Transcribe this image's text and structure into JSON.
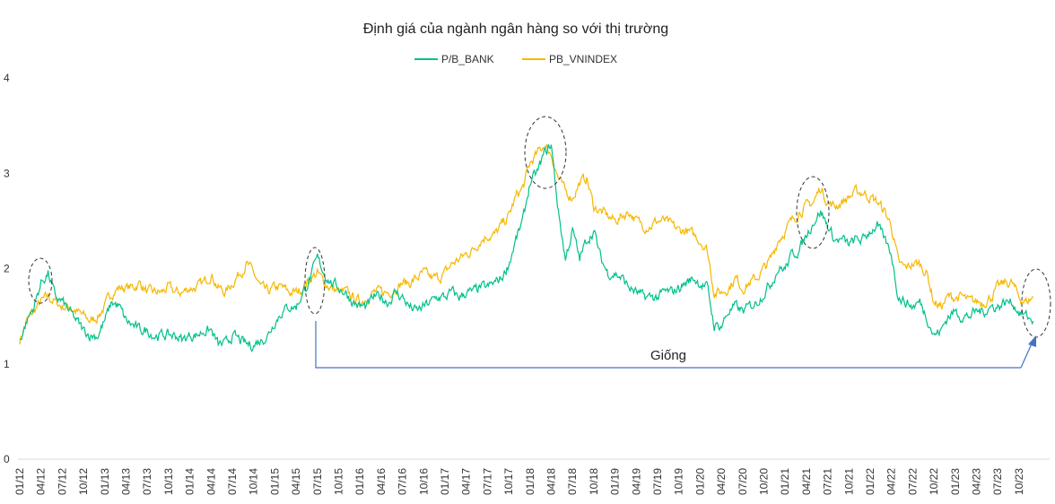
{
  "chart_data": {
    "type": "line",
    "title": "Định giá của ngành ngân hàng so với thị trường",
    "xlabel": "",
    "ylabel": "",
    "ylim": [
      0,
      4
    ],
    "yticks": [
      "0",
      "1",
      "2",
      "3",
      "4"
    ],
    "legend_position": "top-center",
    "grid": false,
    "x_start": "2012-01",
    "x_frequency": "monthly (approximate)",
    "xtick_labels": [
      "01/12",
      "04/12",
      "07/12",
      "10/12",
      "01/13",
      "04/13",
      "07/13",
      "10/13",
      "01/14",
      "04/14",
      "07/14",
      "10/14",
      "01/15",
      "04/15",
      "07/15",
      "10/15",
      "01/16",
      "04/16",
      "07/16",
      "10/16",
      "01/17",
      "04/17",
      "07/17",
      "10/17",
      "01/18",
      "04/18",
      "07/18",
      "10/18",
      "01/19",
      "04/19",
      "07/19",
      "10/19",
      "01/20",
      "04/20",
      "07/20",
      "10/20",
      "01/21",
      "04/21",
      "07/21",
      "10/21",
      "01/22",
      "04/22",
      "07/22",
      "10/22",
      "01/23",
      "04/23",
      "07/23",
      "10/23"
    ],
    "series": [
      {
        "name": "P/B_BANK",
        "color": "#00c08b",
        "values": [
          1.25,
          1.45,
          1.6,
          1.85,
          1.95,
          1.7,
          1.65,
          1.55,
          1.45,
          1.35,
          1.3,
          1.3,
          1.45,
          1.65,
          1.6,
          1.45,
          1.4,
          1.35,
          1.35,
          1.3,
          1.3,
          1.3,
          1.3,
          1.25,
          1.3,
          1.3,
          1.35,
          1.35,
          1.2,
          1.2,
          1.3,
          1.25,
          1.2,
          1.2,
          1.25,
          1.3,
          1.45,
          1.55,
          1.6,
          1.6,
          1.75,
          1.9,
          2.1,
          1.95,
          1.85,
          1.8,
          1.75,
          1.65,
          1.6,
          1.6,
          1.7,
          1.7,
          1.65,
          1.75,
          1.7,
          1.6,
          1.55,
          1.6,
          1.65,
          1.7,
          1.7,
          1.75,
          1.7,
          1.75,
          1.75,
          1.8,
          1.8,
          1.85,
          1.9,
          2.05,
          2.3,
          2.5,
          2.9,
          3.0,
          3.2,
          3.3,
          2.6,
          2.1,
          2.4,
          2.1,
          2.3,
          2.4,
          2.1,
          1.95,
          1.95,
          1.9,
          1.8,
          1.75,
          1.7,
          1.7,
          1.7,
          1.75,
          1.75,
          1.8,
          1.85,
          1.9,
          1.85,
          1.8,
          1.4,
          1.4,
          1.55,
          1.6,
          1.55,
          1.6,
          1.65,
          1.75,
          1.85,
          2.0,
          2.0,
          2.15,
          2.2,
          2.35,
          2.5,
          2.6,
          2.45,
          2.3,
          2.3,
          2.25,
          2.3,
          2.3,
          2.4,
          2.45,
          2.3,
          2.15,
          1.7,
          1.65,
          1.6,
          1.65,
          1.5,
          1.3,
          1.35,
          1.5,
          1.55,
          1.5,
          1.5,
          1.55,
          1.55,
          1.6,
          1.6,
          1.65,
          1.65,
          1.55,
          1.5,
          1.45
        ]
      },
      {
        "name": "PB_VNINDEX",
        "color": "#f5b800",
        "values": [
          1.25,
          1.45,
          1.55,
          1.65,
          1.7,
          1.65,
          1.6,
          1.6,
          1.55,
          1.5,
          1.45,
          1.5,
          1.6,
          1.75,
          1.8,
          1.8,
          1.8,
          1.85,
          1.75,
          1.75,
          1.75,
          1.8,
          1.75,
          1.75,
          1.8,
          1.8,
          1.85,
          1.95,
          1.8,
          1.75,
          1.85,
          1.95,
          2.05,
          1.95,
          1.8,
          1.75,
          1.8,
          1.8,
          1.75,
          1.75,
          1.8,
          1.9,
          1.95,
          1.85,
          1.8,
          1.75,
          1.75,
          1.7,
          1.65,
          1.7,
          1.75,
          1.75,
          1.75,
          1.8,
          1.85,
          1.85,
          1.9,
          1.95,
          1.9,
          1.9,
          1.95,
          2.05,
          2.1,
          2.15,
          2.2,
          2.3,
          2.35,
          2.35,
          2.45,
          2.55,
          2.75,
          2.85,
          3.1,
          3.2,
          3.3,
          3.2,
          2.95,
          2.8,
          2.75,
          2.9,
          2.95,
          2.65,
          2.6,
          2.55,
          2.5,
          2.55,
          2.6,
          2.5,
          2.45,
          2.45,
          2.5,
          2.5,
          2.45,
          2.4,
          2.4,
          2.35,
          2.3,
          2.2,
          1.75,
          1.75,
          1.8,
          1.9,
          1.8,
          1.85,
          1.9,
          2.0,
          2.1,
          2.3,
          2.4,
          2.5,
          2.6,
          2.65,
          2.7,
          2.85,
          2.7,
          2.65,
          2.7,
          2.75,
          2.8,
          2.8,
          2.75,
          2.7,
          2.6,
          2.45,
          2.05,
          2.0,
          2.05,
          2.05,
          1.95,
          1.65,
          1.6,
          1.7,
          1.7,
          1.7,
          1.65,
          1.65,
          1.65,
          1.7,
          1.8,
          1.85,
          1.85,
          1.7,
          1.65,
          1.7
        ]
      }
    ],
    "annotations": {
      "text": "Giống",
      "highlighted_periods": [
        "04/12",
        "07/15",
        "04/18",
        "07/21",
        "01/24"
      ],
      "bracket_from": "07/15",
      "bracket_to": "12/23"
    }
  }
}
